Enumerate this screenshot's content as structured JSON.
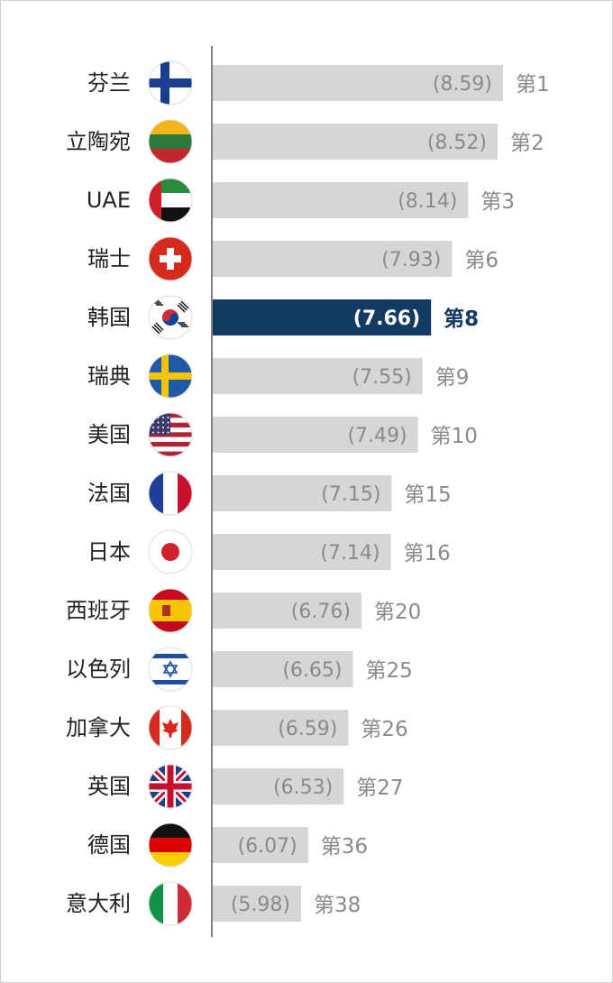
{
  "chart_data": {
    "type": "bar",
    "orientation": "horizontal",
    "highlight_index": 4,
    "colors": {
      "bar": "#d6d6d6",
      "highlight_bar": "#123a63",
      "value_text": "#8a8a8a",
      "rank_text": "#8a8a8a",
      "highlight_rank_text": "#123a63",
      "axis": "#333333"
    },
    "rows": [
      {
        "country": "芬兰",
        "value": 8.59,
        "value_label": "(8.59)",
        "rank": "第1",
        "flag": "finland-flag-icon"
      },
      {
        "country": "立陶宛",
        "value": 8.52,
        "value_label": "(8.52)",
        "rank": "第2",
        "flag": "lithuania-flag-icon"
      },
      {
        "country": "UAE",
        "value": 8.14,
        "value_label": "(8.14)",
        "rank": "第3",
        "flag": "uae-flag-icon"
      },
      {
        "country": "瑞士",
        "value": 7.93,
        "value_label": "(7.93)",
        "rank": "第6",
        "flag": "switzerland-flag-icon"
      },
      {
        "country": "韩国",
        "value": 7.66,
        "value_label": "(7.66)",
        "rank": "第8",
        "flag": "south-korea-flag-icon"
      },
      {
        "country": "瑞典",
        "value": 7.55,
        "value_label": "(7.55)",
        "rank": "第9",
        "flag": "sweden-flag-icon"
      },
      {
        "country": "美国",
        "value": 7.49,
        "value_label": "(7.49)",
        "rank": "第10",
        "flag": "usa-flag-icon"
      },
      {
        "country": "法国",
        "value": 7.15,
        "value_label": "(7.15)",
        "rank": "第15",
        "flag": "france-flag-icon"
      },
      {
        "country": "日本",
        "value": 7.14,
        "value_label": "(7.14)",
        "rank": "第16",
        "flag": "japan-flag-icon"
      },
      {
        "country": "西班牙",
        "value": 6.76,
        "value_label": "(6.76)",
        "rank": "第20",
        "flag": "spain-flag-icon"
      },
      {
        "country": "以色列",
        "value": 6.65,
        "value_label": "(6.65)",
        "rank": "第25",
        "flag": "israel-flag-icon"
      },
      {
        "country": "加拿大",
        "value": 6.59,
        "value_label": "(6.59)",
        "rank": "第26",
        "flag": "canada-flag-icon"
      },
      {
        "country": "英国",
        "value": 6.53,
        "value_label": "(6.53)",
        "rank": "第27",
        "flag": "uk-flag-icon"
      },
      {
        "country": "德国",
        "value": 6.07,
        "value_label": "(6.07)",
        "rank": "第36",
        "flag": "germany-flag-icon"
      },
      {
        "country": "意大利",
        "value": 5.98,
        "value_label": "(5.98)",
        "rank": "第38",
        "flag": "italy-flag-icon"
      }
    ]
  }
}
